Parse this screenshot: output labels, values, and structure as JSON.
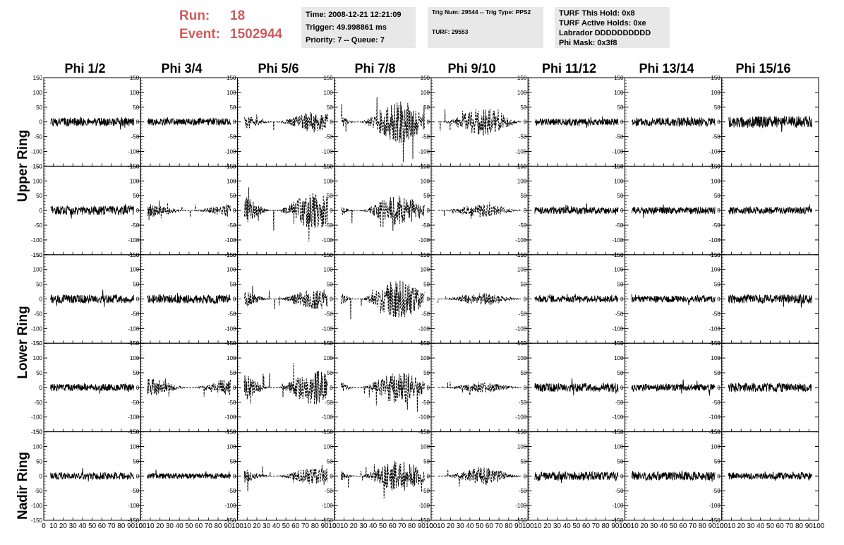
{
  "header": {
    "run_label": "Run:",
    "run_value": "18",
    "event_label": "Event:",
    "event_value": "1502944",
    "time_text": "Time: 2008-12-21 12:21:09",
    "trigger_text": "Trigger: 49.998861 ms",
    "priority_text": "Priority: 7 -- Queue: 7",
    "trig_text": "Trig Num: 29544 -- Trig Type: PPS2",
    "turf_text": "TURF: 29553",
    "turf_hold_text": "TURF This Hold: 0x8",
    "turf_active_text": "TURF Active Holds: 0xe",
    "labrador_text": "Labrador DDDDDDDDDD",
    "phimask_text": "Phi Mask: 0x3f8"
  },
  "columns": [
    "Phi 1/2",
    "Phi 3/4",
    "Phi 5/6",
    "Phi 7/8",
    "Phi 9/10",
    "Phi 11/12",
    "Phi 13/14",
    "Phi 15/16"
  ],
  "rings": [
    "Upper Ring",
    "Lower Ring",
    "Nadir Ring"
  ],
  "y_ticks": [
    "150",
    "100",
    "50",
    "0",
    "-50",
    "-100",
    "-150"
  ],
  "x_ticks": [
    "0",
    "10",
    "20",
    "30",
    "40",
    "50",
    "60",
    "70",
    "80",
    "90",
    "100"
  ],
  "chart_data": {
    "type": "line",
    "title": "",
    "xlabel": "",
    "ylabel": "",
    "xlim": [
      0,
      100
    ],
    "ylim": [
      -150,
      150
    ],
    "grid": false,
    "rows": 5,
    "cols": 8,
    "panel_amplitudes": [
      [
        15,
        12,
        30,
        60,
        40,
        12,
        15,
        20
      ],
      [
        15,
        18,
        55,
        45,
        18,
        12,
        12,
        12
      ],
      [
        15,
        15,
        30,
        55,
        18,
        12,
        12,
        15
      ],
      [
        12,
        25,
        50,
        45,
        15,
        15,
        12,
        15
      ],
      [
        12,
        10,
        25,
        45,
        25,
        15,
        15,
        12
      ]
    ],
    "panel_dashed": [
      [
        false,
        false,
        true,
        true,
        true,
        false,
        false,
        false
      ],
      [
        false,
        true,
        true,
        true,
        true,
        false,
        false,
        false
      ],
      [
        false,
        false,
        true,
        true,
        true,
        false,
        false,
        false
      ],
      [
        false,
        true,
        true,
        true,
        true,
        false,
        false,
        false
      ],
      [
        false,
        false,
        true,
        true,
        true,
        false,
        false,
        false
      ]
    ]
  }
}
